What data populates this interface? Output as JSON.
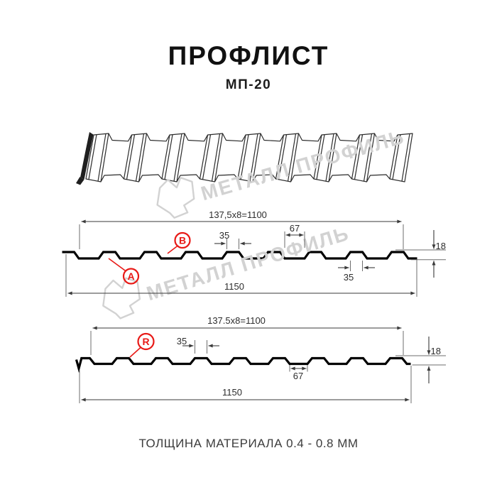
{
  "header": {
    "title": "ПРОФЛИСТ",
    "subtitle": "МП-20"
  },
  "watermark": {
    "brand_text": "МЕТАЛЛ ПРОФИЛЬ"
  },
  "sections": {
    "section_ab": {
      "formula": "137,5x8=1100",
      "dim_rib_top": "35",
      "dim_pan": "67",
      "dim_height": "18",
      "dim_rib_bottom": "35",
      "dim_total": "1150",
      "label_a": "A",
      "label_b": "B"
    },
    "section_r": {
      "formula": "137.5x8=1100",
      "dim_rib_top": "35",
      "dim_pan": "67",
      "dim_height": "18",
      "dim_total": "1150",
      "label_r": "R"
    }
  },
  "footer": {
    "material_note": "ТОЛЩИНА МАТЕРИАЛА 0.4 - 0.8 ММ"
  },
  "colors": {
    "accent_red": "#e81a17",
    "line_black": "#000000",
    "dimension_gray": "#3a3a3a",
    "watermark_gray": "#d2d2d2"
  }
}
